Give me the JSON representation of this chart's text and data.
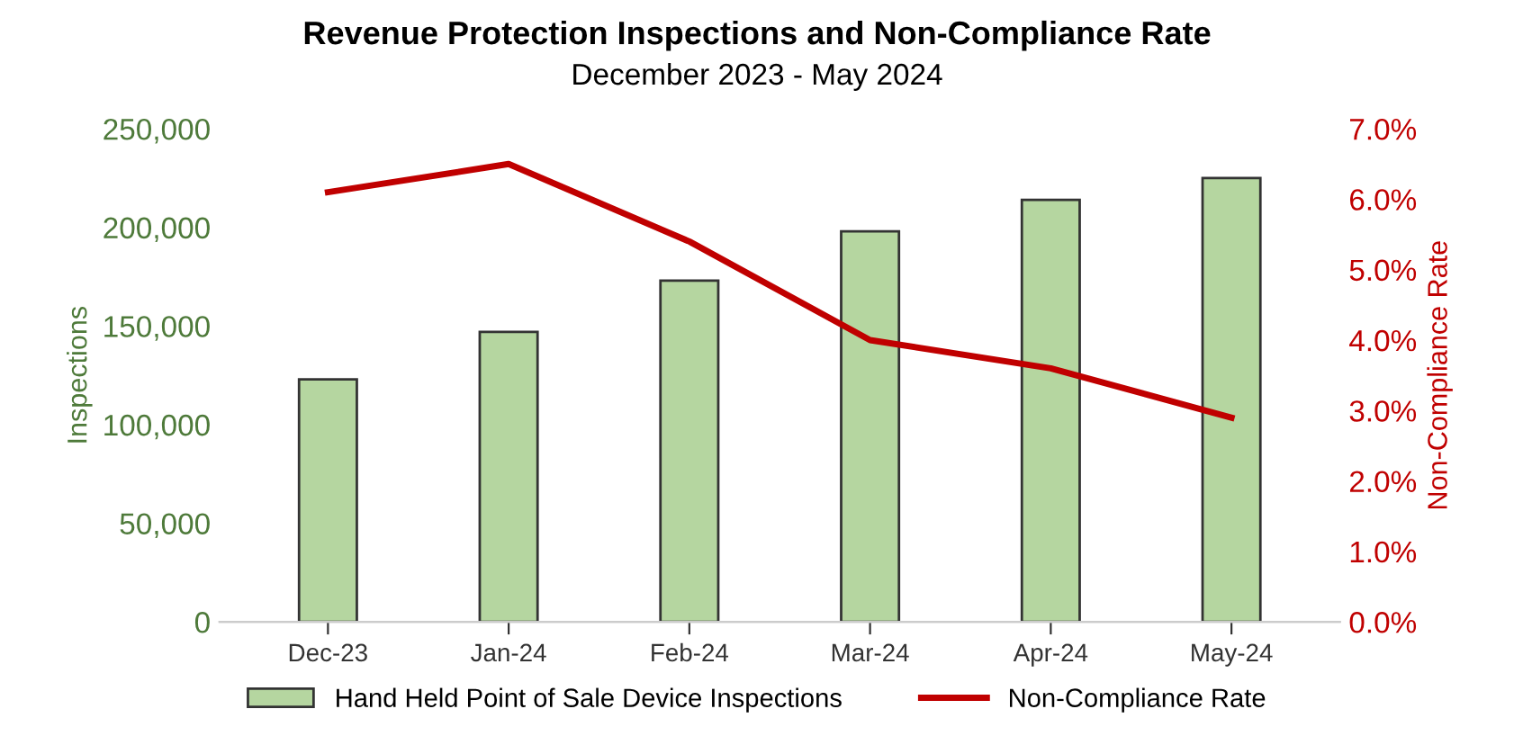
{
  "chart_data": {
    "type": "bar",
    "title": "Revenue Protection Inspections and Non-Compliance Rate",
    "subtitle": "December 2023 - May 2024",
    "ylabel": "Inspections",
    "y2label": "Non-Compliance Rate",
    "categories": [
      "Dec-23",
      "Jan-24",
      "Feb-24",
      "Mar-24",
      "Apr-24",
      "May-24"
    ],
    "series": [
      {
        "name": "Hand Held Point of Sale Device Inspections",
        "color": "#b5d6a0",
        "values": [
          123000,
          147000,
          173000,
          198000,
          214000,
          225000
        ]
      },
      {
        "name": "Non-Compliance Rate",
        "type": "line",
        "axis": "y2",
        "color": "#c00000",
        "values": [
          6.1,
          6.5,
          5.4,
          4.0,
          3.6,
          2.9
        ]
      }
    ],
    "ylim": [
      0,
      250000
    ],
    "yticks": [
      {
        "value": 0,
        "label": "0"
      },
      {
        "value": 50000,
        "label": "50,000"
      },
      {
        "value": 100000,
        "label": "100,000"
      },
      {
        "value": 150000,
        "label": "150,000"
      },
      {
        "value": 200000,
        "label": "200,000"
      },
      {
        "value": 250000,
        "label": "250,000"
      }
    ],
    "y2lim": [
      0,
      7
    ],
    "y2ticks": [
      {
        "value": 0,
        "label": "0.0%"
      },
      {
        "value": 1,
        "label": "1.0%"
      },
      {
        "value": 2,
        "label": "2.0%"
      },
      {
        "value": 3,
        "label": "3.0%"
      },
      {
        "value": 4,
        "label": "4.0%"
      },
      {
        "value": 5,
        "label": "5.0%"
      },
      {
        "value": 6,
        "label": "6.0%"
      },
      {
        "value": 7,
        "label": "7.0%"
      }
    ],
    "grid": false,
    "legend": "bottom",
    "marker": "none"
  }
}
